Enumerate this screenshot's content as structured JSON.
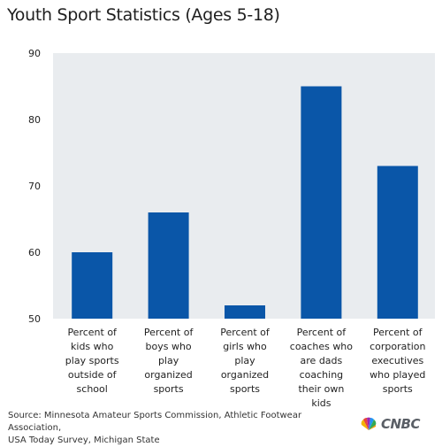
{
  "chart_data": {
    "type": "bar",
    "title": "Youth Sport Statistics (Ages 5-18)",
    "categories": [
      [
        "Percent of",
        "kids who",
        "play sports",
        "outside of",
        "school"
      ],
      [
        "Percent of",
        "boys who",
        "play",
        "organized",
        "sports"
      ],
      [
        "Percent of",
        "girls who",
        "play",
        "organized",
        "sports"
      ],
      [
        "Percent of",
        "coaches who",
        "are dads",
        "coaching",
        "their own",
        "kids"
      ],
      [
        "Percent of",
        "corporation",
        "executives",
        "who played",
        "sports"
      ]
    ],
    "values": [
      60,
      66,
      52,
      85,
      73
    ],
    "ylim": [
      50,
      90
    ],
    "yticks": [
      50,
      60,
      70,
      80,
      90
    ],
    "bar_color": "#0a56a8",
    "grid": false
  },
  "footer": {
    "source_line1": "Source: Minnesota Amateur Sports Commission, Athletic Footwear Association,",
    "source_line2": "USA Today Survey, Michigan State"
  },
  "logo": {
    "text": "CNBC",
    "icon": "peacock-icon"
  }
}
